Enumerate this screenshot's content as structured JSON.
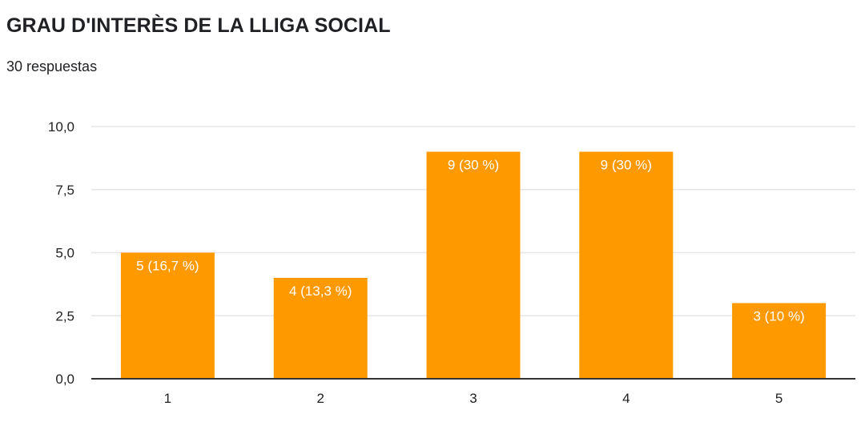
{
  "header": {
    "title": "GRAU D'INTERÈS DE LA LLIGA SOCIAL",
    "subtitle": "30 respuestas"
  },
  "colors": {
    "bar": "#ff9900",
    "grid": "#e6e6e6",
    "axis": "#333333"
  },
  "chart_data": {
    "type": "bar",
    "title": "GRAU D'INTERÈS DE LA LLIGA SOCIAL",
    "subtitle": "30 respuestas",
    "categories": [
      "1",
      "2",
      "3",
      "4",
      "5"
    ],
    "values": [
      5,
      4,
      9,
      9,
      3
    ],
    "data_labels": [
      "5 (16,7 %)",
      "4 (13,3 %)",
      "9 (30 %)",
      "9 (30 %)",
      "3 (10 %)"
    ],
    "ylim": [
      0,
      10
    ],
    "yticks": [
      0,
      2.5,
      5,
      7.5,
      10
    ],
    "ytick_labels": [
      "0,0",
      "2,5",
      "5,0",
      "7,5",
      "10,0"
    ],
    "grid": true,
    "legend": "none"
  }
}
